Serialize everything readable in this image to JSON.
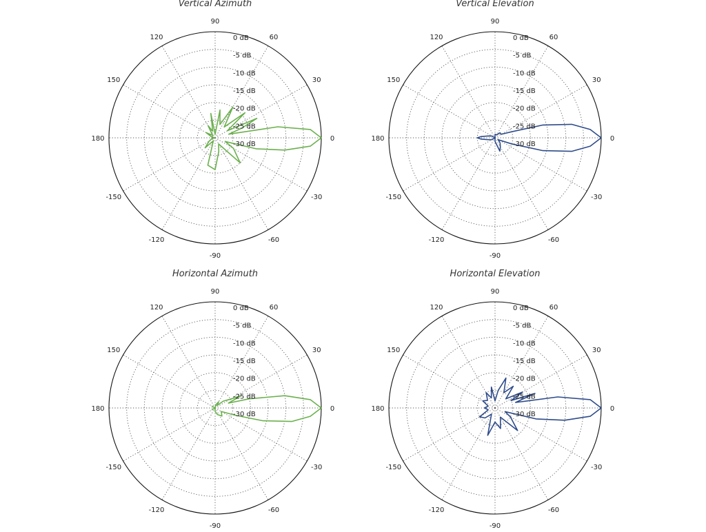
{
  "chart_data": [
    {
      "type": "polar",
      "title": "Vertical Azimuth",
      "color": "#6ab04c",
      "angle_labels": [
        "0",
        "30",
        "60",
        "90",
        "120",
        "150",
        "180",
        "-150",
        "-120",
        "-90",
        "-60",
        "-30"
      ],
      "angle_values": [
        0,
        30,
        60,
        90,
        120,
        150,
        180,
        -150,
        -120,
        -90,
        -60,
        -30
      ],
      "radial_labels": [
        "0 dB",
        "-5 dB",
        "-10 dB",
        "-15 dB",
        "-20 dB",
        "-25 dB",
        "-30 dB"
      ],
      "radial_values": [
        0,
        -5,
        -10,
        -15,
        -20,
        -25,
        -30
      ],
      "r_range": [
        -30,
        0
      ],
      "series": [
        {
          "name": "Vertical Azimuth",
          "angles": [
            0,
            5,
            10,
            15,
            20,
            25,
            30,
            40,
            50,
            60,
            70,
            80,
            90,
            100,
            110,
            120,
            135,
            150,
            165,
            180,
            195,
            210,
            225,
            240,
            255,
            270,
            285,
            300,
            315,
            330,
            340,
            345,
            350,
            355
          ],
          "values": [
            0,
            -3,
            -12,
            -26,
            -22,
            -17,
            -26,
            -19,
            -26,
            -20,
            -26,
            -22,
            -29,
            -23,
            -28,
            -26,
            -29,
            -27,
            -29,
            -30,
            -29,
            -28,
            -26,
            -29,
            -22,
            -21,
            -26,
            -28,
            -20,
            -24,
            -27,
            -18,
            -10,
            -3
          ]
        }
      ]
    },
    {
      "type": "polar",
      "title": "Vertical Elevation",
      "color": "#2d4a8a",
      "angle_labels": [
        "0",
        "30",
        "60",
        "90",
        "120",
        "150",
        "180",
        "-150",
        "-120",
        "-90",
        "-60",
        "-30"
      ],
      "angle_values": [
        0,
        30,
        60,
        90,
        120,
        150,
        180,
        -150,
        -120,
        -90,
        -60,
        -30
      ],
      "radial_labels": [
        "0 dB",
        "-5 dB",
        "-10 dB",
        "-15 dB",
        "-20 dB",
        "-25 dB",
        "-30 dB"
      ],
      "radial_values": [
        0,
        -5,
        -10,
        -15,
        -20,
        -25,
        -30
      ],
      "r_range": [
        -30,
        0
      ],
      "series": [
        {
          "name": "Vertical Elevation",
          "angles": [
            0,
            5,
            10,
            15,
            20,
            30,
            45,
            60,
            90,
            120,
            150,
            165,
            175,
            180,
            185,
            195,
            210,
            240,
            270,
            290,
            300,
            315,
            330,
            340,
            345,
            350,
            355
          ],
          "values": [
            0,
            -3,
            -8,
            -16,
            -25,
            -28,
            -28,
            -29,
            -29,
            -30,
            -29,
            -28,
            -26,
            -25,
            -26,
            -28,
            -29,
            -30,
            -29,
            -26,
            -27,
            -28,
            -29,
            -25,
            -16,
            -8,
            -3
          ]
        }
      ]
    },
    {
      "type": "polar",
      "title": "Horizontal Azimuth",
      "color": "#6ab04c",
      "angle_labels": [
        "0",
        "30",
        "60",
        "90",
        "120",
        "150",
        "180",
        "-150",
        "-120",
        "-90",
        "-60",
        "-30"
      ],
      "angle_values": [
        0,
        30,
        60,
        90,
        120,
        150,
        180,
        -150,
        -120,
        -90,
        -60,
        -30
      ],
      "radial_labels": [
        "0 dB",
        "-5 dB",
        "-10 dB",
        "-15 dB",
        "-20 dB",
        "-25 dB",
        "-30 dB"
      ],
      "radial_values": [
        0,
        -5,
        -10,
        -15,
        -20,
        -25,
        -30
      ],
      "r_range": [
        -30,
        0
      ],
      "series": [
        {
          "name": "Horizontal Azimuth",
          "angles": [
            0,
            5,
            10,
            15,
            20,
            25,
            30,
            40,
            50,
            60,
            75,
            90,
            120,
            150,
            180,
            210,
            240,
            270,
            290,
            310,
            330,
            340,
            345,
            350,
            355
          ],
          "values": [
            0,
            -3,
            -10,
            -20,
            -26,
            -22,
            -25,
            -27,
            -29,
            -28,
            -29,
            -30,
            -30,
            -29,
            -30,
            -29,
            -30,
            -29,
            -28,
            -27,
            -28,
            -24,
            -16,
            -8,
            -3
          ]
        }
      ]
    },
    {
      "type": "polar",
      "title": "Horizontal Elevation",
      "color": "#2d4a8a",
      "angle_labels": [
        "0",
        "30",
        "60",
        "90",
        "120",
        "150",
        "180",
        "-150",
        "-120",
        "-90",
        "-60",
        "-30"
      ],
      "angle_values": [
        0,
        30,
        60,
        90,
        120,
        150,
        180,
        -150,
        -120,
        -90,
        -60,
        -30
      ],
      "radial_labels": [
        "0 dB",
        "-5 dB",
        "-10 dB",
        "-15 dB",
        "-20 dB",
        "-25 dB",
        "-30 dB"
      ],
      "radial_values": [
        0,
        -5,
        -10,
        -15,
        -20,
        -25,
        -30
      ],
      "r_range": [
        -30,
        0
      ],
      "series": [
        {
          "name": "Horizontal Elevation",
          "angles": [
            0,
            5,
            10,
            15,
            20,
            25,
            30,
            40,
            50,
            60,
            70,
            80,
            90,
            100,
            110,
            120,
            135,
            150,
            165,
            180,
            195,
            210,
            225,
            240,
            255,
            270,
            285,
            300,
            315,
            330,
            340,
            345,
            350,
            355
          ],
          "values": [
            0,
            -3,
            -12,
            -24,
            -18,
            -25,
            -21,
            -26,
            -22,
            -25,
            -21,
            -25,
            -28,
            -24,
            -27,
            -25,
            -27,
            -26,
            -28,
            -27,
            -28,
            -25,
            -26,
            -28,
            -22,
            -26,
            -24,
            -27,
            -21,
            -25,
            -27,
            -18,
            -10,
            -3
          ]
        }
      ]
    }
  ]
}
